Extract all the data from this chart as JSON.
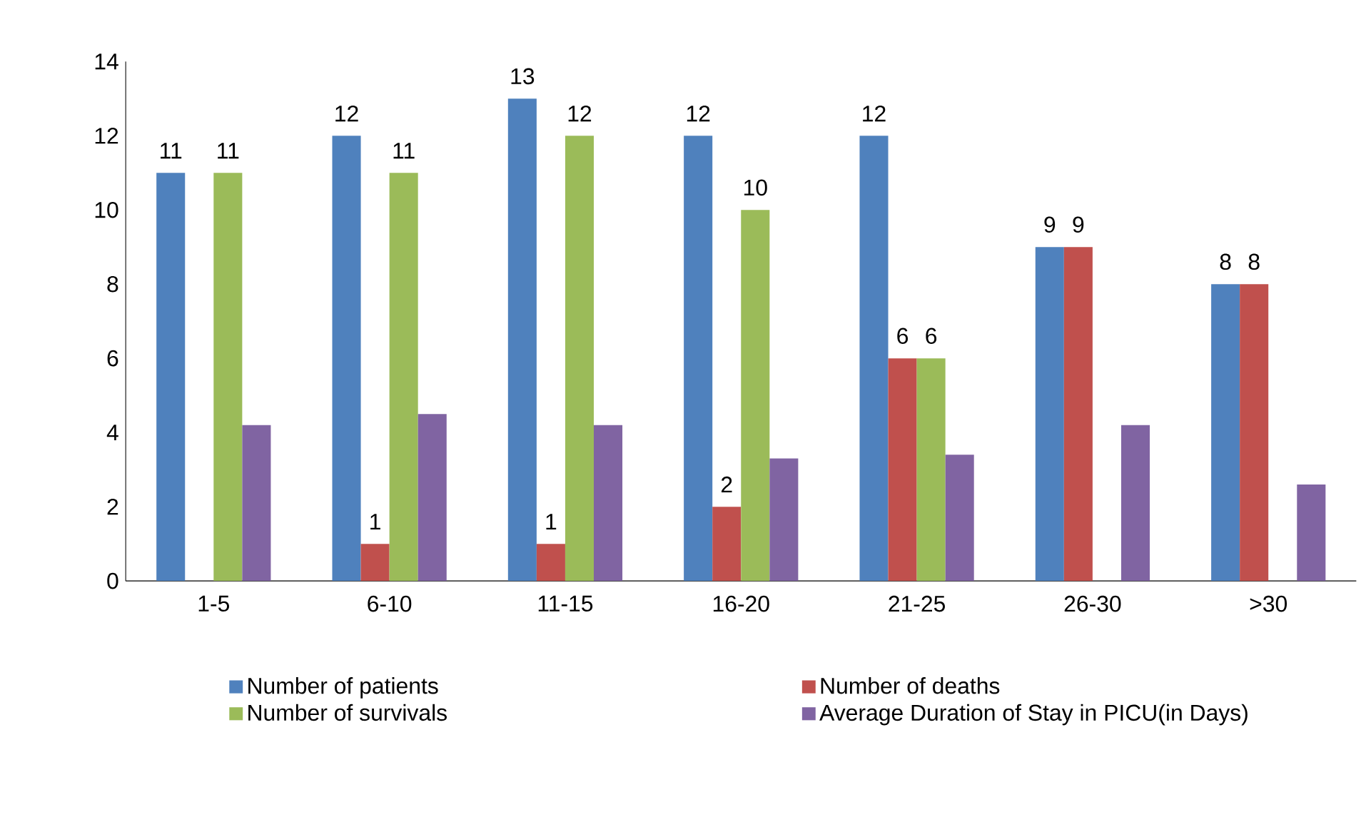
{
  "chart_data": {
    "type": "bar",
    "categories": [
      "1-5",
      "6-10",
      "11-15",
      "16-20",
      "21-25",
      "26-30",
      ">30"
    ],
    "series": [
      {
        "name": "Number of patients",
        "color": "#4f81bd",
        "values": [
          11,
          12,
          13,
          12,
          12,
          9,
          8
        ],
        "value_labels": [
          "11",
          "12",
          "13",
          "12",
          "12",
          "9",
          "8"
        ]
      },
      {
        "name": "Number of deaths",
        "color": "#c0504d",
        "values": [
          0,
          1,
          1,
          2,
          6,
          9,
          8
        ],
        "value_labels": [
          null,
          "1",
          "1",
          "2",
          "6",
          "9",
          "8"
        ]
      },
      {
        "name": "Number of survivals",
        "color": "#9bbb59",
        "values": [
          11,
          11,
          12,
          10,
          6,
          0,
          0
        ],
        "value_labels": [
          "11",
          "11",
          "12",
          "10",
          "6",
          null,
          null
        ]
      },
      {
        "name": "Average Duration of Stay in PICU(in Days)",
        "color": "#8064a2",
        "values": [
          4.2,
          4.5,
          4.2,
          3.3,
          3.4,
          4.2,
          2.6
        ]
      }
    ],
    "ylim": [
      0,
      14
    ],
    "yticks": [
      0,
      2,
      4,
      6,
      8,
      10,
      12,
      14
    ],
    "grid": false,
    "legend": "bottom"
  }
}
